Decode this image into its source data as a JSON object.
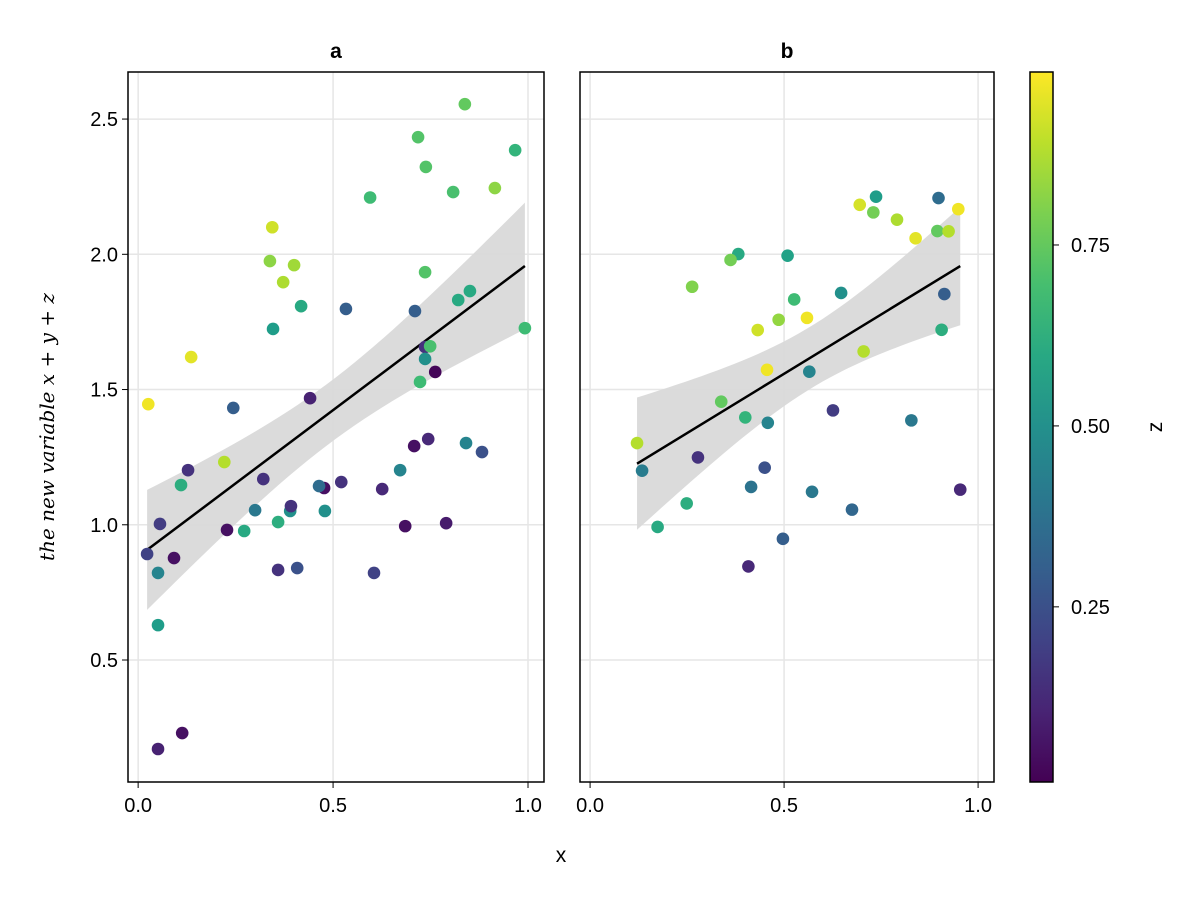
{
  "chart_data": [
    {
      "type": "scatter",
      "title": "a",
      "xlabel": "x",
      "ylabel": "the new variable x + y + z",
      "xlim": [
        -0.026,
        1.041
      ],
      "ylim": [
        0.049,
        2.674
      ],
      "xticks": [
        "0.0",
        "0.5",
        "1.0"
      ],
      "yticks": [
        "0.5",
        "1.0",
        "1.5",
        "2.0",
        "2.5"
      ],
      "grid": true,
      "color_by": "z",
      "regression": "linear fit with confidence band",
      "points": [
        [
          0.026,
          1.446,
          0.97
        ],
        [
          0.136,
          1.62,
          0.95
        ],
        [
          0.244,
          1.432,
          0.3
        ],
        [
          0.344,
          2.1,
          0.92
        ],
        [
          0.338,
          1.975,
          0.82
        ],
        [
          0.372,
          1.897,
          0.87
        ],
        [
          0.4,
          1.96,
          0.85
        ],
        [
          0.346,
          1.724,
          0.55
        ],
        [
          0.418,
          1.808,
          0.6
        ],
        [
          0.533,
          1.798,
          0.3
        ],
        [
          0.595,
          2.21,
          0.68
        ],
        [
          0.718,
          2.433,
          0.72
        ],
        [
          0.738,
          2.323,
          0.72
        ],
        [
          0.838,
          2.555,
          0.75
        ],
        [
          0.967,
          2.385,
          0.65
        ],
        [
          0.808,
          2.23,
          0.7
        ],
        [
          0.915,
          2.245,
          0.82
        ],
        [
          0.736,
          1.934,
          0.72
        ],
        [
          0.71,
          1.79,
          0.3
        ],
        [
          0.821,
          1.831,
          0.6
        ],
        [
          0.851,
          1.864,
          0.6
        ],
        [
          0.992,
          1.727,
          0.68
        ],
        [
          0.736,
          1.657,
          0.15
        ],
        [
          0.749,
          1.66,
          0.7
        ],
        [
          0.736,
          1.613,
          0.5
        ],
        [
          0.762,
          1.565,
          0.02
        ],
        [
          0.723,
          1.528,
          0.68
        ],
        [
          0.441,
          1.468,
          0.1
        ],
        [
          0.128,
          1.202,
          0.15
        ],
        [
          0.221,
          1.232,
          0.88
        ],
        [
          0.11,
          1.147,
          0.62
        ],
        [
          0.056,
          1.003,
          0.18
        ],
        [
          0.023,
          0.892,
          0.2
        ],
        [
          0.092,
          0.877,
          0.05
        ],
        [
          0.051,
          0.822,
          0.45
        ],
        [
          0.051,
          0.629,
          0.55
        ],
        [
          0.113,
          0.23,
          0.05
        ],
        [
          0.051,
          0.171,
          0.1
        ],
        [
          0.321,
          1.169,
          0.15
        ],
        [
          0.228,
          0.981,
          0.05
        ],
        [
          0.272,
          0.977,
          0.6
        ],
        [
          0.3,
          1.054,
          0.4
        ],
        [
          0.359,
          1.01,
          0.62
        ],
        [
          0.39,
          1.051,
          0.5
        ],
        [
          0.392,
          1.069,
          0.15
        ],
        [
          0.359,
          0.833,
          0.15
        ],
        [
          0.408,
          0.84,
          0.25
        ],
        [
          0.477,
          1.136,
          0.05
        ],
        [
          0.464,
          1.143,
          0.35
        ],
        [
          0.479,
          1.051,
          0.5
        ],
        [
          0.521,
          1.158,
          0.15
        ],
        [
          0.626,
          1.132,
          0.12
        ],
        [
          0.605,
          0.822,
          0.2
        ],
        [
          0.672,
          1.202,
          0.45
        ],
        [
          0.685,
          0.995,
          0.05
        ],
        [
          0.708,
          1.291,
          0.05
        ],
        [
          0.744,
          1.317,
          0.12
        ],
        [
          0.79,
          1.006,
          0.08
        ],
        [
          0.841,
          1.302,
          0.45
        ],
        [
          0.882,
          1.269,
          0.25
        ]
      ]
    },
    {
      "type": "scatter",
      "title": "b",
      "xlim": [
        -0.026,
        1.041
      ],
      "ylim": [
        0.049,
        2.674
      ],
      "xticks": [
        "0.0",
        "0.5",
        "1.0"
      ],
      "grid": true,
      "color_by": "z",
      "regression": "linear fit with confidence band",
      "points": [
        [
          0.737,
          2.213,
          0.55
        ],
        [
          0.695,
          2.183,
          0.93
        ],
        [
          0.73,
          2.155,
          0.78
        ],
        [
          0.791,
          2.128,
          0.87
        ],
        [
          0.898,
          2.208,
          0.35
        ],
        [
          0.949,
          2.167,
          0.97
        ],
        [
          0.839,
          2.059,
          0.95
        ],
        [
          0.895,
          2.086,
          0.75
        ],
        [
          0.924,
          2.085,
          0.88
        ],
        [
          0.382,
          2.001,
          0.6
        ],
        [
          0.362,
          1.979,
          0.78
        ],
        [
          0.509,
          1.995,
          0.57
        ],
        [
          0.263,
          1.88,
          0.8
        ],
        [
          0.526,
          1.833,
          0.68
        ],
        [
          0.647,
          1.857,
          0.5
        ],
        [
          0.913,
          1.853,
          0.3
        ],
        [
          0.432,
          1.72,
          0.92
        ],
        [
          0.486,
          1.758,
          0.83
        ],
        [
          0.559,
          1.765,
          0.97
        ],
        [
          0.906,
          1.721,
          0.62
        ],
        [
          0.705,
          1.641,
          0.88
        ],
        [
          0.456,
          1.573,
          0.97
        ],
        [
          0.565,
          1.566,
          0.45
        ],
        [
          0.338,
          1.455,
          0.75
        ],
        [
          0.626,
          1.423,
          0.18
        ],
        [
          0.828,
          1.386,
          0.4
        ],
        [
          0.4,
          1.397,
          0.65
        ],
        [
          0.458,
          1.377,
          0.45
        ],
        [
          0.121,
          1.302,
          0.88
        ],
        [
          0.278,
          1.249,
          0.15
        ],
        [
          0.134,
          1.2,
          0.42
        ],
        [
          0.45,
          1.211,
          0.25
        ],
        [
          0.415,
          1.14,
          0.38
        ],
        [
          0.572,
          1.122,
          0.4
        ],
        [
          0.954,
          1.13,
          0.12
        ],
        [
          0.675,
          1.056,
          0.33
        ],
        [
          0.249,
          1.079,
          0.62
        ],
        [
          0.174,
          0.992,
          0.6
        ],
        [
          0.497,
          0.948,
          0.3
        ],
        [
          0.408,
          0.846,
          0.12
        ]
      ]
    }
  ],
  "colorbar": {
    "label": "z",
    "colormap": "viridis",
    "range": [
      0.008,
      0.989
    ],
    "ticks": [
      "0.25",
      "0.50",
      "0.75"
    ]
  },
  "colors": {
    "regression_line": "#000000",
    "band": "#d9d9d9",
    "grid": "#e6e6e6"
  }
}
